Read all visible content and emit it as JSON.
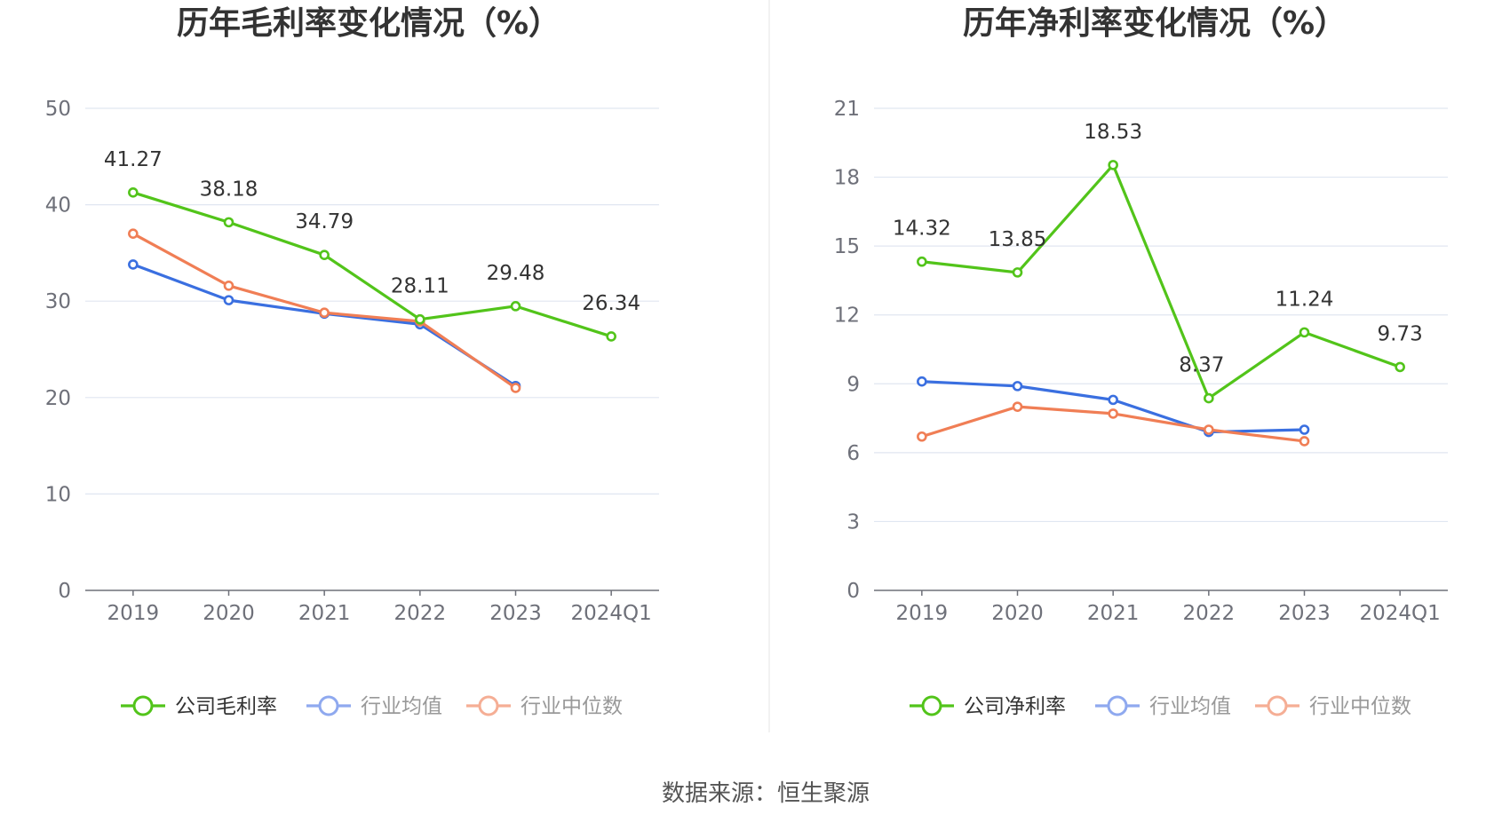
{
  "source": "数据来源：恒生聚源",
  "chart_data": [
    {
      "type": "line",
      "title": "历年毛利率变化情况（%）",
      "categories": [
        "2019",
        "2020",
        "2021",
        "2022",
        "2023",
        "2024Q1"
      ],
      "ylim": [
        0,
        50
      ],
      "yticks": [
        0,
        10,
        20,
        30,
        40,
        50
      ],
      "grid": true,
      "legend_position": "bottom",
      "series": [
        {
          "name": "公司毛利率",
          "color": "#52c41a",
          "values": [
            41.27,
            38.18,
            34.79,
            28.11,
            29.48,
            26.34
          ],
          "labels": true
        },
        {
          "name": "行业均值",
          "color": "#3a6fe0",
          "values": [
            33.8,
            30.1,
            28.7,
            27.6,
            21.2,
            null
          ],
          "labels": false
        },
        {
          "name": "行业中位数",
          "color": "#f07e55",
          "values": [
            37.0,
            31.6,
            28.8,
            27.9,
            21.0,
            null
          ],
          "labels": false
        }
      ]
    },
    {
      "type": "line",
      "title": "历年净利率变化情况（%）",
      "categories": [
        "2019",
        "2020",
        "2021",
        "2022",
        "2023",
        "2024Q1"
      ],
      "ylim": [
        0,
        21
      ],
      "yticks": [
        0,
        3,
        6,
        9,
        12,
        15,
        18,
        21
      ],
      "grid": true,
      "legend_position": "bottom",
      "series": [
        {
          "name": "公司净利率",
          "color": "#52c41a",
          "values": [
            14.32,
            13.85,
            18.53,
            8.37,
            11.24,
            9.73
          ],
          "labels": true
        },
        {
          "name": "行业均值",
          "color": "#3a6fe0",
          "values": [
            9.1,
            8.9,
            8.3,
            6.9,
            7.0,
            null
          ],
          "labels": false
        },
        {
          "name": "行业中位数",
          "color": "#f07e55",
          "values": [
            6.7,
            8.0,
            7.7,
            7.0,
            6.5,
            null
          ],
          "labels": false
        }
      ]
    }
  ]
}
